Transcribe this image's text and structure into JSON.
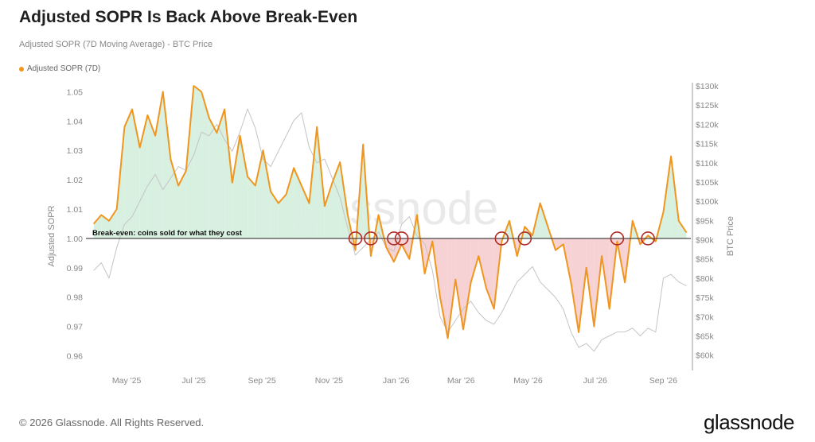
{
  "header": {
    "title": "Adjusted SOPR Is Back Above Break-Even",
    "subtitle": "Adjusted SOPR (7D Moving Average) - BTC Price"
  },
  "legend": {
    "label": "Adjusted SOPR (7D)"
  },
  "footer": {
    "copyright": "© 2026 Glassnode. All Rights Reserved.",
    "brand": "glassnode"
  },
  "watermark": "glassnode",
  "colors": {
    "sopr": "#f0961e",
    "price": "#c4c4c4",
    "above_fill": "#d8f0e0",
    "below_fill": "#f6d2d4",
    "circle": "#b12a24"
  },
  "chart_data": {
    "type": "line",
    "title": "Adjusted SOPR Is Back Above Break-Even",
    "subtitle": "Adjusted SOPR (7D Moving Average) - BTC Price",
    "ylabel": "Adjusted SOPR",
    "y2label": "BTC Price",
    "ylim": [
      0.955,
      1.052
    ],
    "y2lim": [
      56000,
      130000
    ],
    "yticks": [
      "0.96",
      "0.97",
      "0.98",
      "0.99",
      "1.00",
      "1.01",
      "1.02",
      "1.03",
      "1.04",
      "1.05"
    ],
    "y2ticks": [
      "$60k",
      "$65k",
      "$70k",
      "$75k",
      "$80k",
      "$85k",
      "$90k",
      "$95k",
      "$100k",
      "$105k",
      "$110k",
      "$115k",
      "$120k",
      "$125k",
      "$130k"
    ],
    "xticks": [
      "May '25",
      "Jul '25",
      "Sep '25",
      "Nov '25",
      "Jan '26",
      "Mar '26",
      "May '26",
      "Jul '26",
      "Sep '26"
    ],
    "break_even": {
      "value": 1.0,
      "label": "Break-even: coins sold for what they cost"
    },
    "grid": false,
    "legend_position": "top-left",
    "x": [
      "2025-04-01",
      "2025-04-08",
      "2025-04-15",
      "2025-04-22",
      "2025-04-29",
      "2025-05-06",
      "2025-05-13",
      "2025-05-20",
      "2025-05-27",
      "2025-06-03",
      "2025-06-10",
      "2025-06-17",
      "2025-06-24",
      "2025-07-01",
      "2025-07-08",
      "2025-07-15",
      "2025-07-22",
      "2025-07-29",
      "2025-08-05",
      "2025-08-12",
      "2025-08-19",
      "2025-08-26",
      "2025-09-02",
      "2025-09-09",
      "2025-09-16",
      "2025-09-23",
      "2025-09-30",
      "2025-10-07",
      "2025-10-14",
      "2025-10-21",
      "2025-10-28",
      "2025-11-04",
      "2025-11-11",
      "2025-11-18",
      "2025-11-25",
      "2025-12-02",
      "2025-12-09",
      "2025-12-16",
      "2025-12-23",
      "2025-12-30",
      "2026-01-06",
      "2026-01-13",
      "2026-01-20",
      "2026-01-27",
      "2026-02-03",
      "2026-02-10",
      "2026-02-17",
      "2026-02-24",
      "2026-03-03",
      "2026-03-10",
      "2026-03-17",
      "2026-03-24",
      "2026-03-31",
      "2026-04-07",
      "2026-04-14",
      "2026-04-21",
      "2026-04-28",
      "2026-05-05",
      "2026-05-12",
      "2026-05-19",
      "2026-05-26",
      "2026-06-02",
      "2026-06-09",
      "2026-06-16",
      "2026-06-23",
      "2026-06-30",
      "2026-07-07",
      "2026-07-14",
      "2026-07-21",
      "2026-07-28",
      "2026-08-04",
      "2026-08-11",
      "2026-08-18",
      "2026-08-25",
      "2026-09-01",
      "2026-09-08",
      "2026-09-15",
      "2026-09-22"
    ],
    "series": [
      {
        "name": "Adjusted SOPR (7D)",
        "axis": "left",
        "values": [
          1.005,
          1.008,
          1.006,
          1.01,
          1.038,
          1.044,
          1.031,
          1.042,
          1.035,
          1.05,
          1.027,
          1.018,
          1.023,
          1.052,
          1.05,
          1.041,
          1.036,
          1.044,
          1.019,
          1.035,
          1.021,
          1.018,
          1.03,
          1.016,
          1.012,
          1.015,
          1.024,
          1.018,
          1.012,
          1.038,
          1.011,
          1.019,
          1.026,
          1.008,
          0.996,
          1.032,
          0.994,
          1.008,
          0.997,
          0.992,
          0.998,
          0.993,
          1.008,
          0.988,
          0.999,
          0.98,
          0.966,
          0.986,
          0.969,
          0.985,
          0.994,
          0.983,
          0.976,
          0.999,
          1.006,
          0.994,
          1.004,
          1.001,
          1.012,
          1.004,
          0.996,
          0.998,
          0.985,
          0.968,
          0.99,
          0.97,
          0.994,
          0.976,
          0.999,
          0.985,
          1.006,
          0.998,
          1.001,
          0.999,
          1.009,
          1.028,
          1.006,
          1.002
        ]
      },
      {
        "name": "BTC Price",
        "axis": "right",
        "values": [
          82000,
          84000,
          80000,
          88000,
          94000,
          96000,
          100000,
          104000,
          107000,
          103000,
          106000,
          109000,
          108000,
          112000,
          118000,
          117000,
          120000,
          116000,
          113000,
          118000,
          124000,
          119000,
          111000,
          109000,
          113000,
          117000,
          121000,
          123000,
          114000,
          110000,
          111000,
          106000,
          101000,
          93000,
          86000,
          88000,
          90000,
          92000,
          88000,
          87000,
          94000,
          96000,
          91000,
          89000,
          82000,
          70000,
          66000,
          69000,
          72000,
          74000,
          71000,
          69000,
          68000,
          71000,
          75000,
          79000,
          81000,
          83000,
          79000,
          77000,
          75000,
          72000,
          66000,
          62000,
          63000,
          61000,
          64000,
          65000,
          66000,
          66000,
          67000,
          65000,
          67000,
          66000,
          80000,
          81000,
          79000,
          78000
        ]
      }
    ],
    "highlight_circles": [
      "2025-11-25",
      "2025-12-09",
      "2025-12-30",
      "2026-01-06",
      "2026-04-07",
      "2026-04-28",
      "2026-07-21",
      "2026-08-18"
    ]
  }
}
